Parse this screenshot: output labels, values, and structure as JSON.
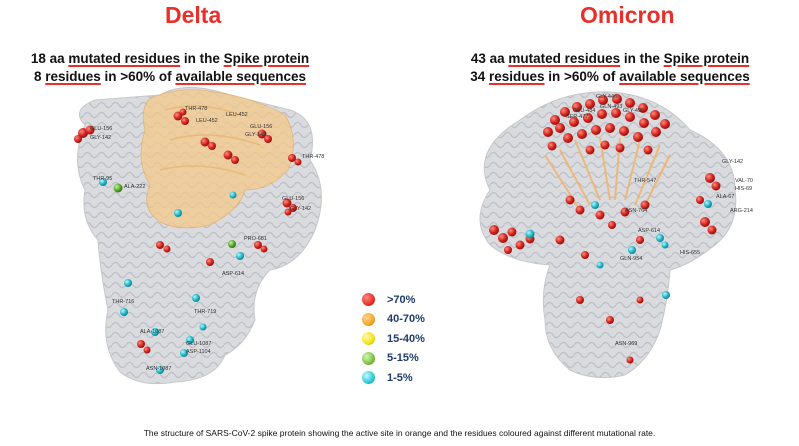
{
  "left_panel": {
    "title": "Delta",
    "subtitle_line1": "18 aa mutated residues in the Spike protein",
    "subtitle_line2": "8 residues in >60% of available sequences",
    "residue_labels": [
      "THR-478",
      "LEU-452",
      "GLU-156",
      "LEU-452",
      "GLY-142",
      "GLU-156",
      "GLY-142",
      "THR-478",
      "THR-95",
      "ALA-222",
      "GLU-156",
      "GLY-142",
      "ASP-614",
      "PRO-681",
      "THR-716",
      "THR-719",
      "ALA-1087",
      "GLU-1087",
      "ASP-1104",
      "ASN-1087"
    ]
  },
  "right_panel": {
    "title": "Omicron",
    "subtitle_line1": "43 aa mutated residues in the Spike protein",
    "subtitle_line2": "34 residues in >60% of available sequences",
    "residue_labels": [
      "GLY-446",
      "GLN-493",
      "GLU-484",
      "GLY-496",
      "SER-477",
      "GLY-142",
      "VAL-70",
      "HIS-69",
      "ALA-67",
      "ARG-214",
      "THR-547",
      "ASP-614",
      "GLN-954",
      "HIS-655",
      "ASN-764",
      "ASN-969"
    ]
  },
  "legend": {
    "items": [
      {
        "label": ">70%",
        "color": "#e8302a"
      },
      {
        "label": "40-70%",
        "color": "#f5a623"
      },
      {
        "label": "15-40%",
        "color": "#f2e21a"
      },
      {
        "label": "5-15%",
        "color": "#7cc244"
      },
      {
        "label": "1-5%",
        "color": "#2ec8d8"
      }
    ]
  },
  "caption": "The structure of SARS-CoV-2 spike protein showing the active site in orange and the residues coloured against different mutational rate."
}
